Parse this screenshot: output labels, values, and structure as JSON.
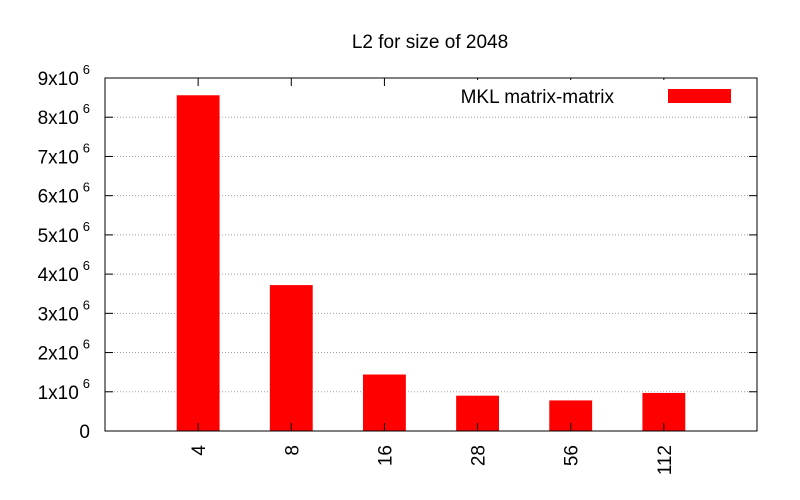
{
  "chart_data": {
    "type": "bar",
    "title": "L2 for size of 2048",
    "xlabel": "",
    "ylabel": "",
    "categories": [
      "4",
      "8",
      "16",
      "28",
      "56",
      "112"
    ],
    "series": [
      {
        "name": "MKL matrix-matrix",
        "color": "#ff0000",
        "values": [
          8560000,
          3720000,
          1440000,
          900000,
          780000,
          970000
        ]
      }
    ],
    "ylim": [
      0,
      9000000
    ],
    "yticks": [
      {
        "value": 0,
        "mantissa": "0",
        "exp": ""
      },
      {
        "value": 1000000,
        "mantissa": "1x10",
        "exp": "6"
      },
      {
        "value": 2000000,
        "mantissa": "2x10",
        "exp": "6"
      },
      {
        "value": 3000000,
        "mantissa": "3x10",
        "exp": "6"
      },
      {
        "value": 4000000,
        "mantissa": "4x10",
        "exp": "6"
      },
      {
        "value": 5000000,
        "mantissa": "5x10",
        "exp": "6"
      },
      {
        "value": 6000000,
        "mantissa": "6x10",
        "exp": "6"
      },
      {
        "value": 7000000,
        "mantissa": "7x10",
        "exp": "6"
      },
      {
        "value": 8000000,
        "mantissa": "8x10",
        "exp": "6"
      },
      {
        "value": 9000000,
        "mantissa": "9x10",
        "exp": "6"
      }
    ],
    "grid": true,
    "legend_position": "top-right"
  }
}
